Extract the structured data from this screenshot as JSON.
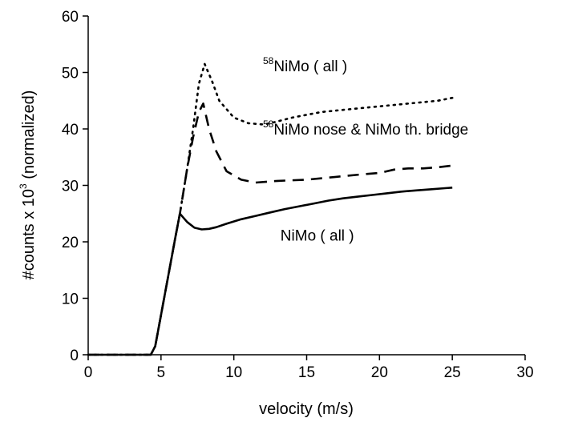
{
  "chart_data": {
    "type": "line",
    "xlabel": "velocity (m/s)",
    "ylabel_main": "#counts x 10",
    "ylabel_exp": "3",
    "ylabel_tail": " (normalized)",
    "xlim": [
      0,
      30
    ],
    "ylim": [
      0,
      60
    ],
    "xticks": [
      "0",
      "5",
      "10",
      "15",
      "20",
      "25",
      "30"
    ],
    "yticks": [
      "0",
      "10",
      "20",
      "30",
      "40",
      "50",
      "60"
    ],
    "grid": false,
    "legend": "none",
    "series": [
      {
        "style": "dotted",
        "x": [
          0,
          4.3,
          4.6,
          5.0,
          5.5,
          6.0,
          6.3,
          6.8,
          7.2,
          7.6,
          8.0,
          8.5,
          9.0,
          10.0,
          11.0,
          12.0,
          12.5,
          14.0,
          16.0,
          18.0,
          20.0,
          22.0,
          24.0,
          25.0
        ],
        "y": [
          0,
          0,
          1.5,
          7,
          14,
          21,
          25,
          33,
          40,
          48,
          51.5,
          48.5,
          45,
          42,
          41,
          40.8,
          41,
          42,
          43,
          43.5,
          44,
          44.5,
          45,
          45.5
        ]
      },
      {
        "style": "dashed",
        "x": [
          0,
          4.3,
          4.6,
          5.0,
          5.5,
          6.0,
          6.3,
          6.8,
          7.2,
          7.6,
          7.9,
          8.3,
          8.8,
          9.5,
          10.5,
          11.5,
          13.0,
          15.0,
          17.0,
          19.0,
          20.0,
          21.0,
          22.0,
          23.0,
          24.0,
          25.0
        ],
        "y": [
          0,
          0,
          1.5,
          7,
          14,
          21,
          25,
          33,
          38.5,
          43,
          44.5,
          40,
          36,
          32.5,
          31,
          30.5,
          30.8,
          31,
          31.5,
          32,
          32.2,
          32.8,
          33,
          33,
          33.2,
          33.5
        ]
      },
      {
        "style": "solid",
        "x": [
          0,
          4.3,
          4.6,
          5.0,
          5.5,
          6.0,
          6.3,
          6.8,
          7.3,
          7.8,
          8.3,
          8.8,
          9.5,
          10.5,
          11.5,
          12.5,
          13.5,
          14.5,
          15.5,
          16.5,
          17.5,
          18.5,
          19.5,
          20.5,
          21.5,
          22.5,
          23.5,
          24.5,
          25.0
        ],
        "y": [
          0,
          0,
          1.5,
          7,
          14,
          21,
          25,
          23.5,
          22.5,
          22.2,
          22.3,
          22.6,
          23.2,
          24,
          24.6,
          25.2,
          25.8,
          26.3,
          26.8,
          27.3,
          27.7,
          28,
          28.3,
          28.6,
          28.9,
          29.1,
          29.3,
          29.5,
          29.6
        ]
      }
    ],
    "annotations": [
      {
        "sup": "58",
        "text": "NiMo ( all )",
        "x": 12.0,
        "y": 50.2
      },
      {
        "sup": "58",
        "text": "NiMo nose  & NiMo th. bridge",
        "x": 12.0,
        "y": 39.0
      },
      {
        "sup": "",
        "text": "NiMo ( all )",
        "x": 13.2,
        "y": 20.2
      }
    ]
  }
}
